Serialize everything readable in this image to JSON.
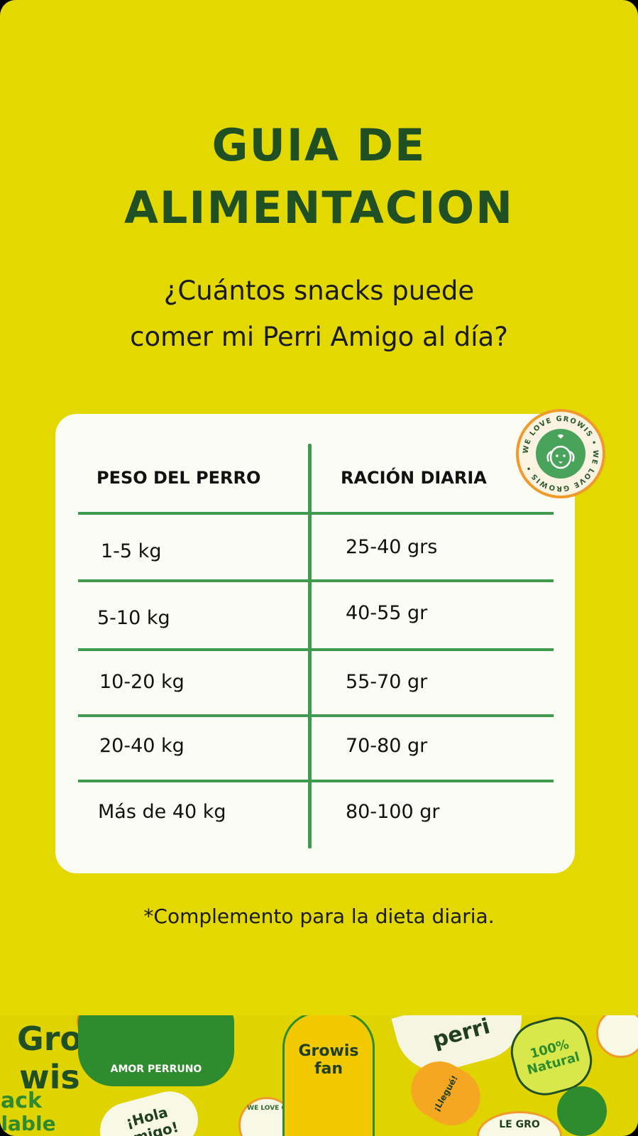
{
  "title": {
    "line1": "GUIA DE",
    "line2": "ALIMENTACION"
  },
  "subtitle": {
    "line1": "¿Cuántos snacks puede",
    "line2": "comer mi Perri Amigo al día?"
  },
  "badge": {
    "text": "WE LOVE GROWIS • WE LOVE GROWIS •",
    "icon": "dog-face-icon"
  },
  "table": {
    "headers": [
      "PESO DEL PERRO",
      "RACIÓN DIARIA"
    ],
    "rows": [
      {
        "weight": "1-5 kg",
        "ration": "25-40 grs"
      },
      {
        "weight": "5-10 kg",
        "ration": "40-55 gr"
      },
      {
        "weight": "10-20 kg",
        "ration": "55-70 gr"
      },
      {
        "weight": "20-40 kg",
        "ration": "70-80 gr"
      },
      {
        "weight": "Más de 40 kg",
        "ration": "80-100 gr"
      }
    ]
  },
  "footnote": "*Complemento para la dieta diaria.",
  "banner": {
    "stickers": [
      "Gro wis",
      "ack",
      "lable",
      "AMOR PERRUNO",
      "Growis fan",
      "perri",
      "100% Natural",
      "¡Hola amigo!",
      "¡Llegué!",
      "WE LOVE G",
      "LE GRO"
    ]
  },
  "colors": {
    "background": "#e3d900",
    "title": "#1f4f22",
    "table_lines": "#3e9a4c",
    "badge_ring": "#ef9a2a"
  }
}
